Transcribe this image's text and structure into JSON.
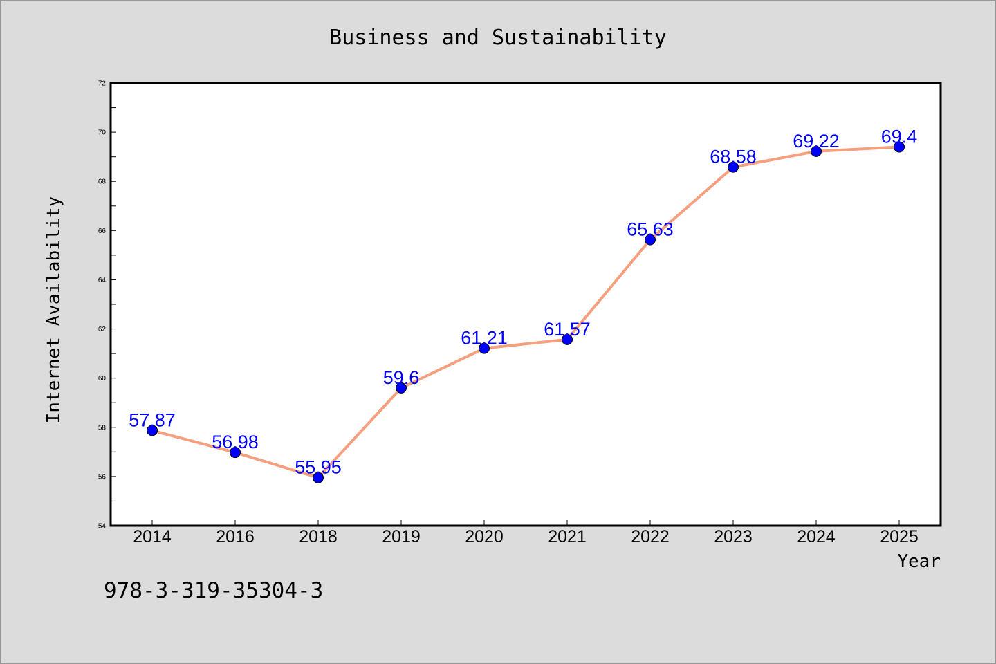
{
  "chart_data": {
    "type": "line",
    "title": "Business and Sustainability",
    "xlabel": "Year",
    "ylabel": "Internet Availability",
    "categories": [
      "2014",
      "2016",
      "2018",
      "2019",
      "2020",
      "2021",
      "2022",
      "2023",
      "2024",
      "2025"
    ],
    "series": [
      {
        "values": [
          57.87,
          56.98,
          55.95,
          59.6,
          61.21,
          61.57,
          65.63,
          68.58,
          69.22,
          69.4
        ]
      }
    ],
    "data_labels": [
      "57.87",
      "56.98",
      "55.95",
      "59.6",
      "61.21",
      "61.57",
      "65.63",
      "68.58",
      "69.22",
      "69.4"
    ],
    "ylim": [
      54,
      72
    ],
    "yticks": [
      54,
      56,
      58,
      60,
      62,
      64,
      66,
      68,
      70,
      72
    ],
    "grid": false,
    "legend": false,
    "line_color": "#f4a07f",
    "marker_color": "#0000ff",
    "label_color": "#0000ff"
  },
  "footnote": "978-3-319-35304-3"
}
